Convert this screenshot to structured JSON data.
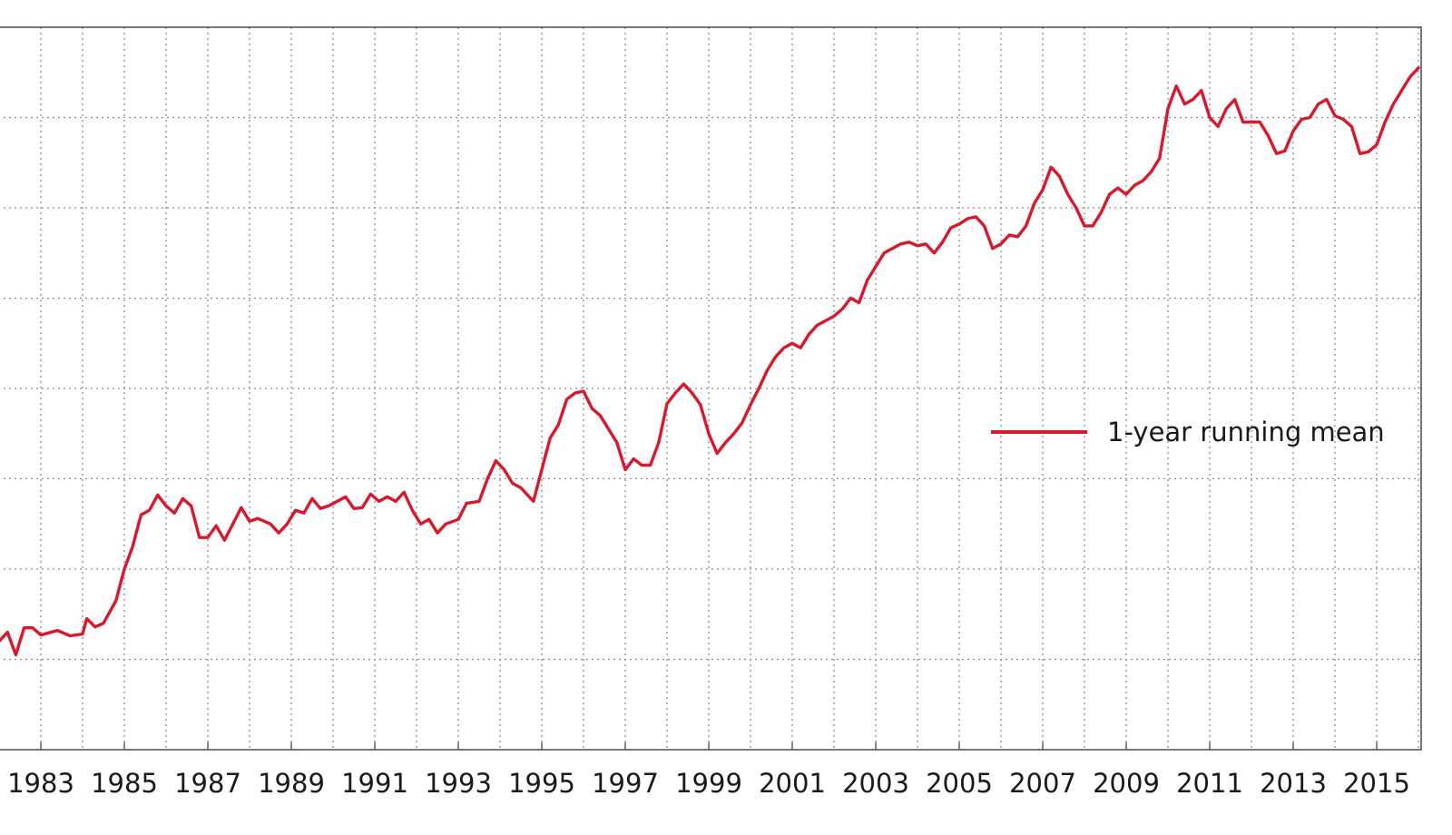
{
  "chart_data": {
    "type": "line",
    "title": "",
    "xlabel": "",
    "ylabel": "",
    "xlim": [
      1982.0,
      2016.0
    ],
    "ylim": [
      0,
      8
    ],
    "grid": true,
    "legend_position": "right",
    "x_tick_labels": [
      "1983",
      "1985",
      "1987",
      "1989",
      "1991",
      "1993",
      "1995",
      "1997",
      "1999",
      "2001",
      "2003",
      "2005",
      "2007",
      "2009",
      "2011",
      "2013",
      "2015"
    ],
    "series": [
      {
        "name": "1-year running mean",
        "color": "#d7192b",
        "points": [
          [
            1982.0,
            1.2
          ],
          [
            1982.2,
            1.3
          ],
          [
            1982.4,
            1.05
          ],
          [
            1982.6,
            1.35
          ],
          [
            1982.8,
            1.35
          ],
          [
            1983.0,
            1.27
          ],
          [
            1983.4,
            1.32
          ],
          [
            1983.7,
            1.26
          ],
          [
            1984.0,
            1.28
          ],
          [
            1984.1,
            1.45
          ],
          [
            1984.3,
            1.36
          ],
          [
            1984.5,
            1.4
          ],
          [
            1984.8,
            1.65
          ],
          [
            1985.0,
            2.0
          ],
          [
            1985.2,
            2.25
          ],
          [
            1985.4,
            2.6
          ],
          [
            1985.6,
            2.65
          ],
          [
            1985.8,
            2.82
          ],
          [
            1986.0,
            2.7
          ],
          [
            1986.2,
            2.62
          ],
          [
            1986.4,
            2.78
          ],
          [
            1986.6,
            2.7
          ],
          [
            1986.8,
            2.35
          ],
          [
            1987.0,
            2.35
          ],
          [
            1987.2,
            2.48
          ],
          [
            1987.4,
            2.32
          ],
          [
            1987.6,
            2.5
          ],
          [
            1987.8,
            2.68
          ],
          [
            1988.0,
            2.53
          ],
          [
            1988.2,
            2.56
          ],
          [
            1988.5,
            2.5
          ],
          [
            1988.7,
            2.4
          ],
          [
            1988.9,
            2.5
          ],
          [
            1989.1,
            2.65
          ],
          [
            1989.3,
            2.62
          ],
          [
            1989.5,
            2.78
          ],
          [
            1989.7,
            2.67
          ],
          [
            1989.9,
            2.7
          ],
          [
            1990.1,
            2.75
          ],
          [
            1990.3,
            2.8
          ],
          [
            1990.5,
            2.67
          ],
          [
            1990.7,
            2.68
          ],
          [
            1990.9,
            2.83
          ],
          [
            1991.1,
            2.75
          ],
          [
            1991.3,
            2.8
          ],
          [
            1991.5,
            2.75
          ],
          [
            1991.7,
            2.85
          ],
          [
            1991.9,
            2.65
          ],
          [
            1992.1,
            2.5
          ],
          [
            1992.3,
            2.55
          ],
          [
            1992.5,
            2.4
          ],
          [
            1992.7,
            2.5
          ],
          [
            1993.0,
            2.55
          ],
          [
            1993.2,
            2.73
          ],
          [
            1993.5,
            2.75
          ],
          [
            1993.7,
            3.0
          ],
          [
            1993.9,
            3.2
          ],
          [
            1994.1,
            3.1
          ],
          [
            1994.3,
            2.95
          ],
          [
            1994.5,
            2.9
          ],
          [
            1994.8,
            2.75
          ],
          [
            1995.0,
            3.1
          ],
          [
            1995.2,
            3.45
          ],
          [
            1995.4,
            3.6
          ],
          [
            1995.6,
            3.88
          ],
          [
            1995.8,
            3.95
          ],
          [
            1996.0,
            3.97
          ],
          [
            1996.2,
            3.78
          ],
          [
            1996.4,
            3.7
          ],
          [
            1996.6,
            3.55
          ],
          [
            1996.8,
            3.4
          ],
          [
            1997.0,
            3.1
          ],
          [
            1997.2,
            3.22
          ],
          [
            1997.4,
            3.15
          ],
          [
            1997.6,
            3.15
          ],
          [
            1997.8,
            3.4
          ],
          [
            1998.0,
            3.83
          ],
          [
            1998.2,
            3.95
          ],
          [
            1998.4,
            4.05
          ],
          [
            1998.6,
            3.95
          ],
          [
            1998.8,
            3.82
          ],
          [
            1999.0,
            3.5
          ],
          [
            1999.2,
            3.28
          ],
          [
            1999.4,
            3.4
          ],
          [
            1999.6,
            3.5
          ],
          [
            1999.8,
            3.62
          ],
          [
            2000.0,
            3.82
          ],
          [
            2000.2,
            4.0
          ],
          [
            2000.4,
            4.2
          ],
          [
            2000.6,
            4.35
          ],
          [
            2000.8,
            4.45
          ],
          [
            2001.0,
            4.5
          ],
          [
            2001.2,
            4.45
          ],
          [
            2001.4,
            4.6
          ],
          [
            2001.6,
            4.7
          ],
          [
            2001.8,
            4.75
          ],
          [
            2002.0,
            4.8
          ],
          [
            2002.2,
            4.88
          ],
          [
            2002.4,
            5.0
          ],
          [
            2002.6,
            4.95
          ],
          [
            2002.8,
            5.2
          ],
          [
            2003.0,
            5.35
          ],
          [
            2003.2,
            5.5
          ],
          [
            2003.4,
            5.55
          ],
          [
            2003.6,
            5.6
          ],
          [
            2003.8,
            5.62
          ],
          [
            2004.0,
            5.58
          ],
          [
            2004.2,
            5.6
          ],
          [
            2004.4,
            5.5
          ],
          [
            2004.6,
            5.62
          ],
          [
            2004.8,
            5.78
          ],
          [
            2005.0,
            5.82
          ],
          [
            2005.2,
            5.88
          ],
          [
            2005.4,
            5.9
          ],
          [
            2005.6,
            5.8
          ],
          [
            2005.8,
            5.55
          ],
          [
            2006.0,
            5.6
          ],
          [
            2006.2,
            5.7
          ],
          [
            2006.4,
            5.68
          ],
          [
            2006.6,
            5.8
          ],
          [
            2006.8,
            6.05
          ],
          [
            2007.0,
            6.2
          ],
          [
            2007.2,
            6.45
          ],
          [
            2007.4,
            6.35
          ],
          [
            2007.6,
            6.15
          ],
          [
            2007.8,
            6.0
          ],
          [
            2008.0,
            5.8
          ],
          [
            2008.2,
            5.8
          ],
          [
            2008.4,
            5.95
          ],
          [
            2008.6,
            6.15
          ],
          [
            2008.8,
            6.22
          ],
          [
            2009.0,
            6.15
          ],
          [
            2009.2,
            6.25
          ],
          [
            2009.4,
            6.3
          ],
          [
            2009.6,
            6.4
          ],
          [
            2009.8,
            6.55
          ],
          [
            2010.0,
            7.1
          ],
          [
            2010.2,
            7.35
          ],
          [
            2010.4,
            7.15
          ],
          [
            2010.6,
            7.2
          ],
          [
            2010.8,
            7.3
          ],
          [
            2011.0,
            7.0
          ],
          [
            2011.2,
            6.9
          ],
          [
            2011.4,
            7.1
          ],
          [
            2011.6,
            7.2
          ],
          [
            2011.8,
            6.95
          ],
          [
            2012.0,
            6.95
          ],
          [
            2012.2,
            6.95
          ],
          [
            2012.4,
            6.8
          ],
          [
            2012.6,
            6.6
          ],
          [
            2012.8,
            6.63
          ],
          [
            2013.0,
            6.85
          ],
          [
            2013.2,
            6.98
          ],
          [
            2013.4,
            7.0
          ],
          [
            2013.6,
            7.15
          ],
          [
            2013.8,
            7.2
          ],
          [
            2014.0,
            7.02
          ],
          [
            2014.2,
            6.98
          ],
          [
            2014.4,
            6.9
          ],
          [
            2014.6,
            6.6
          ],
          [
            2014.8,
            6.62
          ],
          [
            2015.0,
            6.7
          ],
          [
            2015.2,
            6.95
          ],
          [
            2015.4,
            7.15
          ],
          [
            2015.6,
            7.3
          ],
          [
            2015.8,
            7.45
          ],
          [
            2016.0,
            7.55
          ]
        ]
      }
    ]
  }
}
